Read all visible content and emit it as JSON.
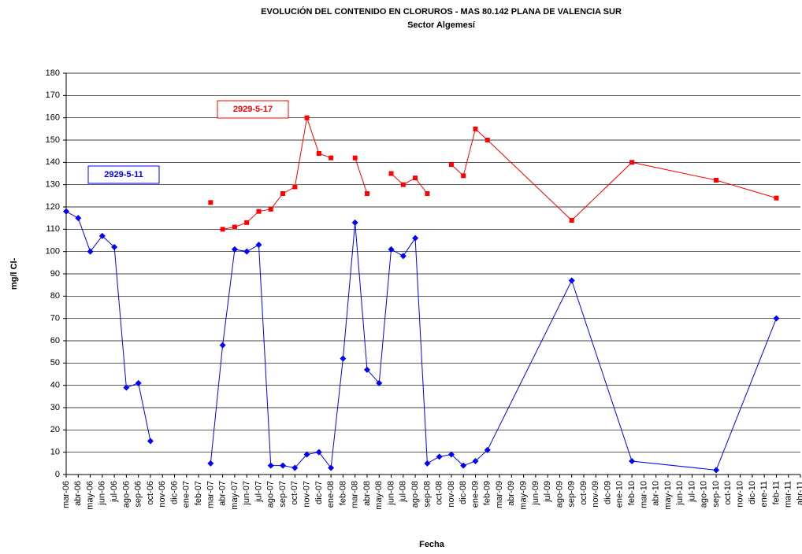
{
  "chart_data": {
    "type": "line",
    "title": "EVOLUCIÓN DEL CONTENIDO EN CLORUROS - MAS 80.142 PLANA DE VALENCIA SUR",
    "subtitle": "Sector Algemesí",
    "x_label": "Fecha",
    "y_label": "mg/l Cl-",
    "categories": [
      "mar-06",
      "abr-06",
      "may-06",
      "jun-06",
      "jul-06",
      "ago-06",
      "sep-06",
      "oct-06",
      "nov-06",
      "dic-06",
      "ene-07",
      "feb-07",
      "mar-07",
      "abr-07",
      "may-07",
      "jun-07",
      "jul-07",
      "ago-07",
      "sep-07",
      "oct-07",
      "nov-07",
      "dic-07",
      "ene-08",
      "feb-08",
      "mar-08",
      "abr-08",
      "may-08",
      "jun-08",
      "jul-08",
      "ago-08",
      "sep-08",
      "oct-08",
      "nov-08",
      "dic-08",
      "ene-09",
      "feb-09",
      "mar-09",
      "abr-09",
      "may-09",
      "jun-09",
      "jul-09",
      "ago-09",
      "sep-09",
      "oct-09",
      "nov-09",
      "dic-09",
      "ene-10",
      "feb-10",
      "mar-10",
      "abr-10",
      "may-10",
      "jun-10",
      "jul-10",
      "ago-10",
      "sep-10",
      "oct-10",
      "nov-10",
      "dic-10",
      "ene-11",
      "feb-11",
      "mar-11",
      "abr-11"
    ],
    "series": [
      {
        "name": "2929-5-11",
        "color": "#0000ff",
        "marker": "diamond",
        "x": [
          "mar-06",
          "abr-06",
          "may-06",
          "jun-06",
          "jul-06",
          "ago-06",
          "sep-06",
          "oct-06",
          null,
          "mar-07",
          "abr-07",
          "may-07",
          "jun-07",
          "jul-07",
          "ago-07",
          "sep-07",
          "oct-07",
          "nov-07",
          "dic-07",
          "ene-08",
          "feb-08",
          "mar-08",
          "abr-08",
          "may-08",
          "jun-08",
          "jul-08",
          "ago-08",
          "sep-08",
          "oct-08",
          "nov-08",
          "dic-08",
          "ene-09",
          "feb-09",
          "sep-09",
          "feb-10",
          "sep-10",
          "feb-11"
        ],
        "values": [
          118,
          115,
          100,
          107,
          102,
          39,
          41,
          15,
          null,
          5,
          58,
          101,
          100,
          103,
          4,
          4,
          3,
          9,
          10,
          3,
          52,
          113,
          47,
          41,
          101,
          98,
          106,
          5,
          8,
          9,
          4,
          6,
          11,
          87,
          6,
          2,
          70
        ]
      },
      {
        "name": "2929-5-17",
        "color": "#ff0000",
        "marker": "square",
        "x": [
          "mar-07",
          null,
          "abr-07",
          "may-07",
          "jun-07",
          "jul-07",
          "ago-07",
          "sep-07",
          "oct-07",
          "nov-07",
          "dic-07",
          "ene-08",
          null,
          "mar-08",
          "abr-08",
          null,
          "jun-08",
          "jul-08",
          "ago-08",
          "sep-08",
          null,
          "nov-08",
          "dic-08",
          "ene-09",
          "feb-09",
          "sep-09",
          "feb-10",
          "sep-10",
          "feb-11"
        ],
        "values": [
          122,
          null,
          110,
          111,
          113,
          118,
          119,
          126,
          129,
          160,
          144,
          142,
          null,
          142,
          126,
          null,
          135,
          130,
          133,
          126,
          null,
          139,
          134,
          155,
          150,
          114,
          140,
          132,
          124
        ]
      }
    ],
    "ylim": [
      0,
      180
    ],
    "yticks": [
      0,
      10,
      20,
      30,
      40,
      50,
      60,
      70,
      80,
      90,
      100,
      110,
      120,
      130,
      140,
      150,
      160,
      170,
      180
    ],
    "grid": true
  }
}
